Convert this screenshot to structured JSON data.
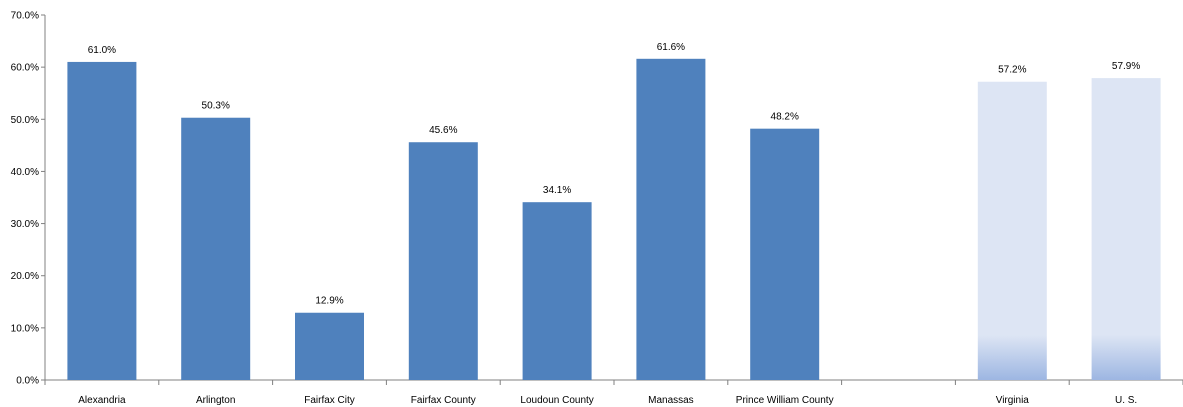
{
  "chart_data": {
    "type": "bar",
    "title": "",
    "xlabel": "",
    "ylabel": "",
    "ylim": [
      0,
      70
    ],
    "y_ticks": [
      0,
      10,
      20,
      30,
      40,
      50,
      60,
      70
    ],
    "y_tick_labels": [
      "0.0%",
      "10.0%",
      "20.0%",
      "30.0%",
      "40.0%",
      "50.0%",
      "60.0%",
      "70.0%"
    ],
    "grid": false,
    "categories": [
      "Alexandria",
      "Arlington",
      "Fairfax City",
      "Fairfax County",
      "Loudoun County",
      "Manassas",
      "Prince William County",
      "",
      "Virginia",
      "U. S."
    ],
    "values": [
      61.0,
      50.3,
      12.9,
      45.6,
      34.1,
      61.6,
      48.2,
      null,
      57.2,
      57.9
    ],
    "data_labels": [
      "61.0%",
      "50.3%",
      "12.9%",
      "45.6%",
      "34.1%",
      "61.6%",
      "48.2%",
      "",
      "57.2%",
      "57.9%"
    ],
    "bar_styles": [
      "solid",
      "solid",
      "solid",
      "solid",
      "solid",
      "solid",
      "solid",
      "none",
      "light",
      "light"
    ],
    "colors": {
      "solid": "#4f81bd",
      "light_top": "#dde5f4",
      "light_bottom": "#9db6e2",
      "axis": "#808080"
    }
  }
}
